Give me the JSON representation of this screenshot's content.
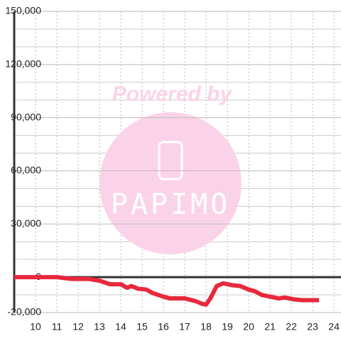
{
  "chart_data": {
    "type": "line",
    "watermark": {
      "title": "Powered by",
      "logo": "PAPIMO"
    },
    "x": [
      9,
      11,
      11.7,
      12.5,
      13,
      13.5,
      14,
      14.3,
      14.5,
      14.8,
      15.2,
      15.5,
      16,
      16.3,
      17,
      17.5,
      17.8,
      18,
      18.2,
      18.5,
      18.8,
      19.2,
      19.6,
      20,
      20.3,
      20.6,
      21,
      21.4,
      21.7,
      22.1,
      22.5,
      23.3
    ],
    "series": [
      {
        "color": "#e8283c",
        "values": [
          0,
          0,
          -1000,
          -1000,
          -2000,
          -4000,
          -4000,
          -6000,
          -5000,
          -6500,
          -7000,
          -9000,
          -11000,
          -12000,
          -12000,
          -13500,
          -15000,
          -15500,
          -12000,
          -5000,
          -3500,
          -4500,
          -5000,
          -7000,
          -8000,
          -10000,
          -11000,
          -12000,
          -11500,
          -12500,
          -13000,
          -13000
        ]
      }
    ],
    "xlim": [
      9,
      24.33
    ],
    "xticks": [
      10,
      11,
      12,
      13,
      14,
      15,
      16,
      17,
      18,
      19,
      20,
      21,
      22,
      23,
      24
    ],
    "ylim": [
      -20000,
      150000
    ],
    "yticks": [
      {
        "value": 150000,
        "label": "150,000"
      },
      {
        "value": 120000,
        "label": "120,000"
      },
      {
        "value": 90000,
        "label": "90,000"
      },
      {
        "value": 60000,
        "label": "60,000"
      },
      {
        "value": 30000,
        "label": "30,000"
      },
      0,
      {
        "value": -20000,
        "label": "-20,000"
      }
    ],
    "yminor": [
      -10000,
      10000,
      20000,
      40000,
      50000,
      70000,
      80000,
      100000,
      110000,
      130000,
      140000
    ],
    "grid": true
  }
}
